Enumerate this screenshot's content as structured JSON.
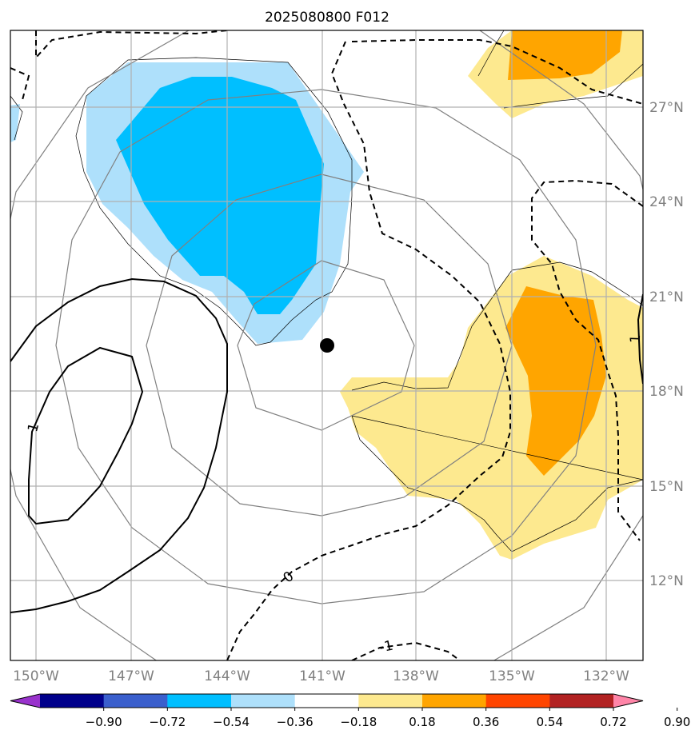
{
  "title": "2025080800 F012",
  "map": {
    "lon_labels": [
      "150°W",
      "147°W",
      "144°W",
      "141°W",
      "138°W",
      "135°W",
      "132°W"
    ],
    "lat_labels": [
      "27°N",
      "24°N",
      "21°N",
      "18°N",
      "15°N",
      "12°N"
    ],
    "lon_range": [
      -150.8,
      -130.8
    ],
    "lat_range": [
      9.5,
      29.5
    ],
    "storm_center": {
      "lon": -141.1,
      "lat": 19.5,
      "marker": "filled-black-circle"
    },
    "contour_labels": {
      "zero": "0",
      "neg_one": "-1",
      "pos_one_left": "1",
      "pos_one_right": "1"
    },
    "fill_colors": {
      "light_blue": "#aee0fb",
      "deep_sky_blue": "#00bfff",
      "light_yellow": "#fde98f",
      "orange": "#ffa500"
    },
    "line_colors": {
      "range_rings": "#808080",
      "grid": "#b0b0b0",
      "contours": "#000000"
    }
  },
  "colorbar": {
    "tick_labels": [
      "−0.90",
      "−0.72",
      "−0.54",
      "−0.36",
      "−0.18",
      "0.18",
      "0.36",
      "0.54",
      "0.72",
      "0.90"
    ],
    "colors": [
      "#9932cc",
      "#00008b",
      "#3a5fcd",
      "#00bfff",
      "#aee0fb",
      "#ffffff",
      "#fde98f",
      "#ffa500",
      "#ff4500",
      "#b22222",
      "#ff85a8"
    ]
  }
}
